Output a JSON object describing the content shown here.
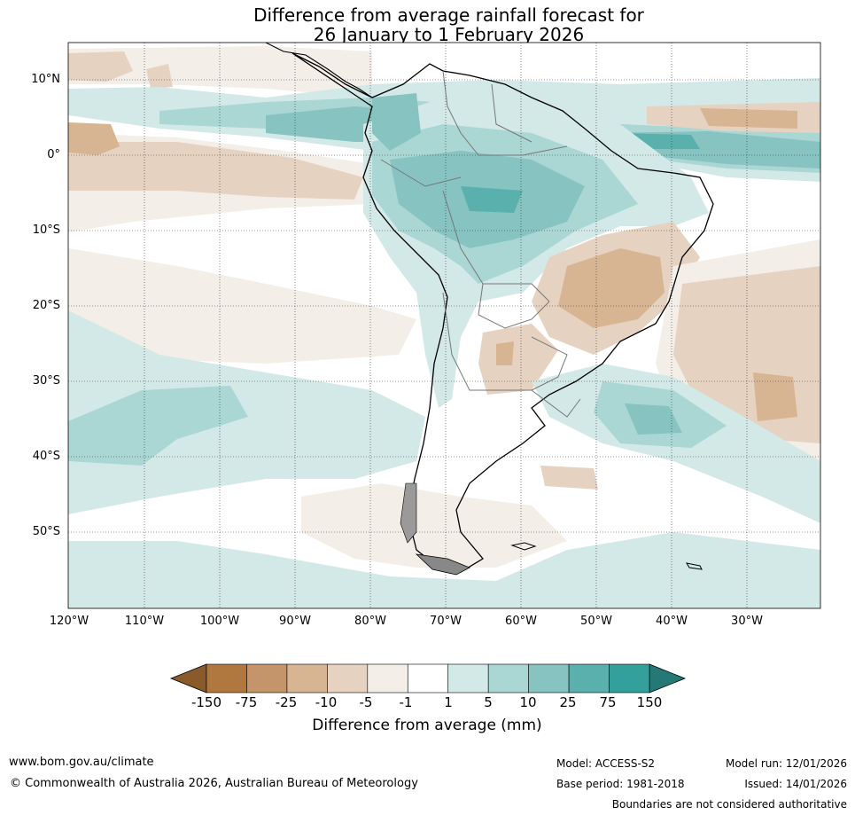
{
  "title": {
    "line1": "Difference from average rainfall forecast for",
    "line2": "26 January to 1 February 2026"
  },
  "map": {
    "lat_labels": [
      "10°N",
      "0°",
      "10°S",
      "20°S",
      "30°S",
      "40°S",
      "50°S"
    ],
    "lon_labels": [
      "120°W",
      "110°W",
      "100°W",
      "90°W",
      "80°W",
      "70°W",
      "60°W",
      "50°W",
      "40°W",
      "30°W"
    ]
  },
  "colorbar": {
    "ticks": [
      "-150",
      "-75",
      "-25",
      "-10",
      "-5",
      "-1",
      "1",
      "5",
      "10",
      "25",
      "75",
      "150"
    ],
    "colors": [
      "#8a5a2b",
      "#b0783e",
      "#c4946a",
      "#d7b492",
      "#e6d2c0",
      "#f3eee8",
      "#ffffff",
      "#d3e9e7",
      "#aad6d4",
      "#86c3c1",
      "#5ab0ad",
      "#34a09c",
      "#247876"
    ],
    "title": "Difference from average (mm)"
  },
  "footer": {
    "website": "www.bom.gov.au/climate",
    "copyright": "© Commonwealth of Australia 2026, Australian Bureau of Meteorology",
    "model": "Model: ACCESS-S2",
    "base_period": "Base period: 1981-2018",
    "model_run": "Model run: 12/01/2026",
    "issued": "Issued: 14/01/2026",
    "disclaimer": "Boundaries are not considered authoritative"
  }
}
